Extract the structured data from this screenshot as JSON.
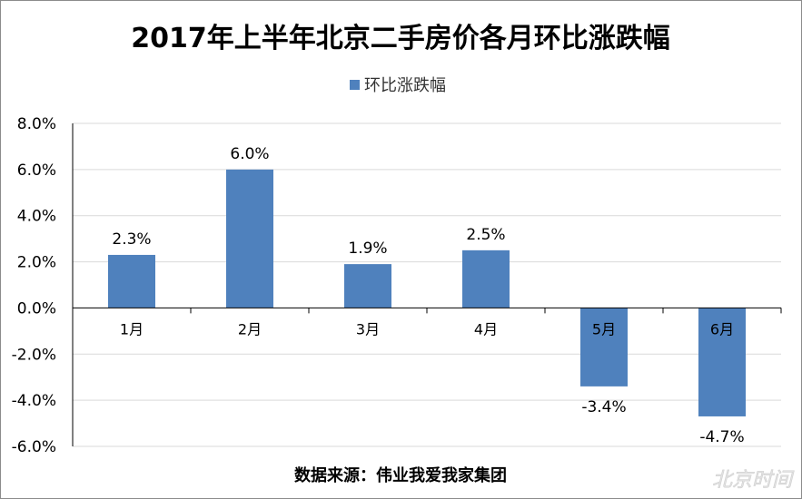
{
  "chart_data": {
    "type": "bar",
    "title": "2017年上半年北京二手房价各月环比涨跌幅",
    "categories": [
      "1月",
      "2月",
      "3月",
      "4月",
      "5月",
      "6月"
    ],
    "series": [
      {
        "name": "环比涨跌幅",
        "values": [
          2.3,
          6.0,
          1.9,
          2.5,
          -3.4,
          -4.7
        ],
        "data_labels": [
          "2.3%",
          "6.0%",
          "1.9%",
          "2.5%",
          "-3.4%",
          "-4.7%"
        ],
        "color": "#4f81bd"
      }
    ],
    "ylim": [
      -6.0,
      8.0
    ],
    "yticks": [
      8.0,
      6.0,
      4.0,
      2.0,
      0.0,
      -2.0,
      -4.0,
      -6.0
    ],
    "ytick_labels": [
      "8.0%",
      "6.0%",
      "4.0%",
      "2.0%",
      "0.0%",
      "-2.0%",
      "-4.0%",
      "-6.0%"
    ],
    "legend_position": "top-center",
    "grid": true,
    "source_note": "数据来源：伟业我爱我家集团",
    "watermark": "北京时间"
  }
}
